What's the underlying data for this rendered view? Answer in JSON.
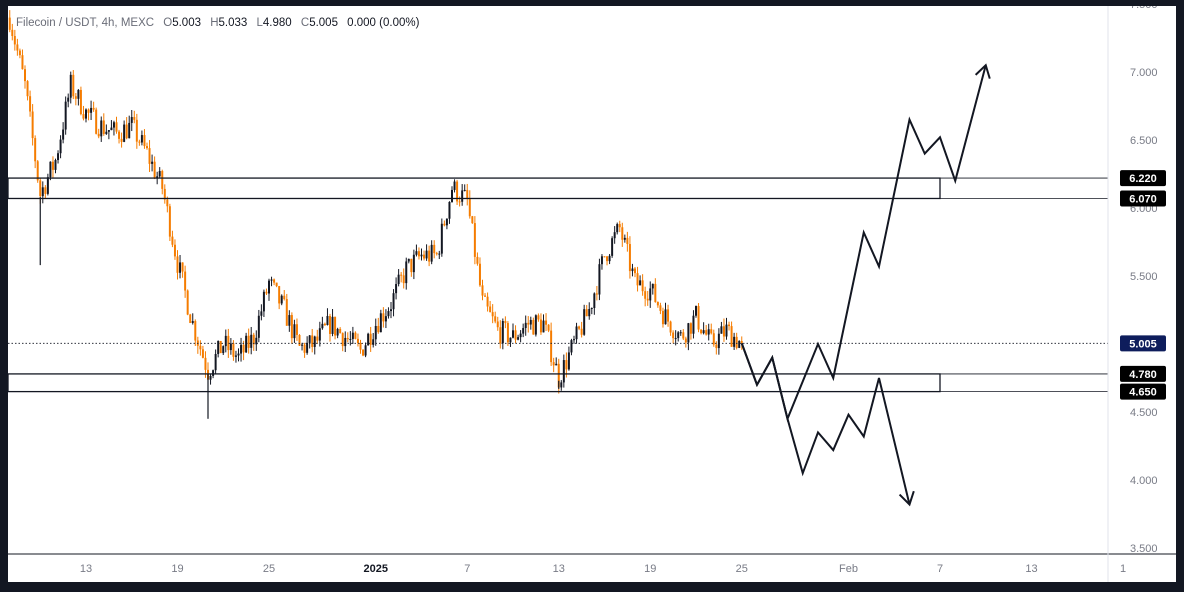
{
  "header": {
    "symbol": "Filecoin / USDT, 4h, MEXC",
    "o_label": "O",
    "o_value": "5.003",
    "h_label": "H",
    "h_value": "5.033",
    "l_label": "L",
    "l_value": "4.980",
    "c_label": "C",
    "c_value": "5.005",
    "change": "0.000 (0.00%)"
  },
  "chart_data": {
    "type": "candlestick",
    "symbol": "Filecoin / USDT",
    "interval": "4h",
    "exchange": "MEXC",
    "ylim": [
      3.5,
      7.5
    ],
    "y_ticks": [
      "7.500",
      "7.000",
      "6.500",
      "6.000",
      "5.500",
      "5.000",
      "4.500",
      "4.000",
      "3.500"
    ],
    "x_ticks": [
      "13",
      "19",
      "25",
      "2025",
      "7",
      "13",
      "19",
      "25",
      "Feb",
      "7",
      "13",
      "1"
    ],
    "last_price": 5.005,
    "price_tags": [
      {
        "label": "6.220",
        "value": 6.22,
        "style": "dark"
      },
      {
        "label": "6.070",
        "value": 6.07,
        "style": "dark"
      },
      {
        "label": "5.005",
        "value": 5.005,
        "style": "blue"
      },
      {
        "label": "4.780",
        "value": 4.78,
        "style": "dark"
      },
      {
        "label": "4.650",
        "value": 4.65,
        "style": "dark"
      }
    ],
    "zones": [
      {
        "name": "resistance",
        "top": 6.22,
        "bottom": 6.07,
        "end_date": "Feb 7"
      },
      {
        "name": "support",
        "top": 4.78,
        "bottom": 4.65,
        "end_date": "Feb 7"
      }
    ],
    "price_path_close_approx": [
      [
        "Dec 8",
        7.4
      ],
      [
        "Dec 9",
        6.9
      ],
      [
        "Dec 10",
        6.1
      ],
      [
        "Dec 11",
        6.35
      ],
      [
        "Dec 12",
        6.9
      ],
      [
        "Dec 13",
        6.7
      ],
      [
        "Dec 14",
        6.6
      ],
      [
        "Dec 15",
        6.55
      ],
      [
        "Dec 16",
        6.6
      ],
      [
        "Dec 17",
        6.4
      ],
      [
        "Dec 18",
        6.15
      ],
      [
        "Dec 19",
        5.6
      ],
      [
        "Dec 20",
        5.15
      ],
      [
        "Dec 21",
        4.8
      ],
      [
        "Dec 22",
        5.0
      ],
      [
        "Dec 23",
        4.9
      ],
      [
        "Dec 24",
        5.05
      ],
      [
        "Dec 25",
        5.45
      ],
      [
        "Dec 26",
        5.25
      ],
      [
        "Dec 27",
        4.97
      ],
      [
        "Dec 28",
        5.0
      ],
      [
        "Dec 29",
        5.15
      ],
      [
        "Dec 30",
        5.05
      ],
      [
        "Dec 31",
        4.95
      ],
      [
        "Jan 1",
        5.15
      ],
      [
        "Jan 2",
        5.3
      ],
      [
        "Jan 3",
        5.55
      ],
      [
        "Jan 4",
        5.65
      ],
      [
        "Jan 5",
        5.65
      ],
      [
        "Jan 6",
        6.15
      ],
      [
        "Jan 7",
        6.05
      ],
      [
        "Jan 8",
        5.3
      ],
      [
        "Jan 9",
        5.1
      ],
      [
        "Jan 10",
        5.05
      ],
      [
        "Jan 11",
        5.15
      ],
      [
        "Jan 12",
        5.15
      ],
      [
        "Jan 13",
        4.75
      ],
      [
        "Jan 14",
        5.0
      ],
      [
        "Jan 15",
        5.25
      ],
      [
        "Jan 16",
        5.65
      ],
      [
        "Jan 17",
        5.85
      ],
      [
        "Jan 18",
        5.45
      ],
      [
        "Jan 19",
        5.4
      ],
      [
        "Jan 20",
        5.2
      ],
      [
        "Jan 21",
        5.05
      ],
      [
        "Jan 22",
        5.2
      ],
      [
        "Jan 23",
        5.0
      ],
      [
        "Jan 24",
        5.1
      ],
      [
        "Jan 25",
        5.0
      ]
    ],
    "projections": [
      {
        "name": "bullish-scenario",
        "points": [
          [
            "Jan 25",
            5.005
          ],
          [
            "Jan 26",
            4.7
          ],
          [
            "Jan 27",
            4.9
          ],
          [
            "Jan 28",
            4.45
          ],
          [
            "Jan 30",
            5.0
          ],
          [
            "Jan 31",
            4.75
          ],
          [
            "Feb 2",
            5.82
          ],
          [
            "Feb 3",
            5.57
          ],
          [
            "Feb 5",
            6.65
          ],
          [
            "Feb 6",
            6.4
          ],
          [
            "Feb 7",
            6.52
          ],
          [
            "Feb 8",
            6.2
          ],
          [
            "Feb 10",
            7.05
          ]
        ]
      },
      {
        "name": "bearish-scenario",
        "points": [
          [
            "Jan 25",
            5.005
          ],
          [
            "Jan 26",
            4.7
          ],
          [
            "Jan 27",
            4.9
          ],
          [
            "Jan 28",
            4.45
          ],
          [
            "Jan 29",
            4.05
          ],
          [
            "Jan 30",
            4.35
          ],
          [
            "Jan 31",
            4.22
          ],
          [
            "Feb 1",
            4.48
          ],
          [
            "Feb 2",
            4.32
          ],
          [
            "Feb 3",
            4.75
          ],
          [
            "Feb 5",
            3.82
          ]
        ]
      }
    ]
  }
}
